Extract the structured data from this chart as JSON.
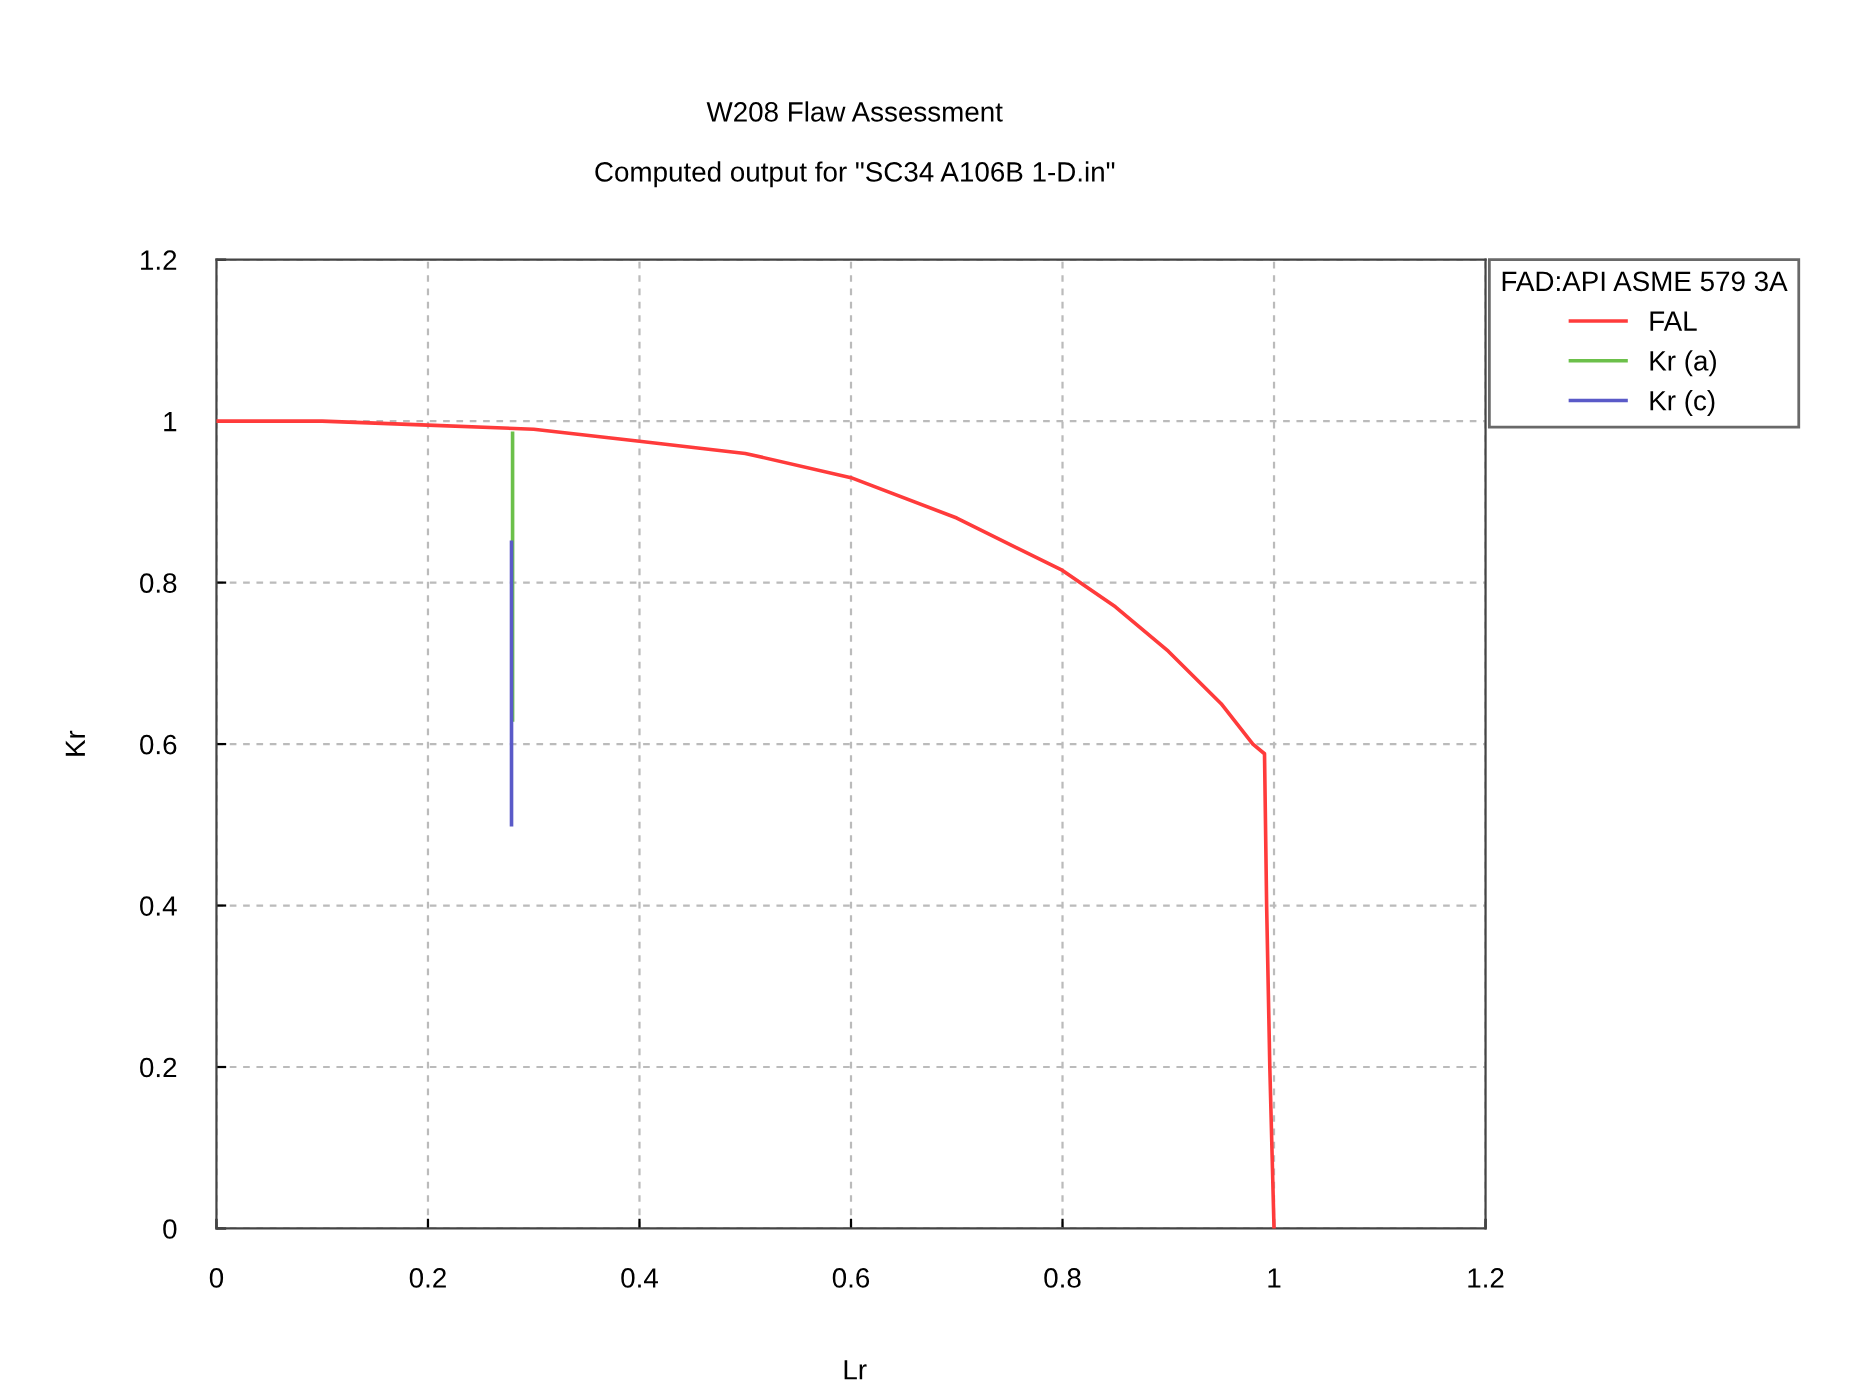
{
  "chart_data": {
    "type": "line",
    "title": "W208 Flaw Assessment",
    "subtitle": "Computed output for \"SC34 A106B 1-D.in\"",
    "xlabel": "Lr",
    "ylabel": "Kr",
    "legend_title": "FAD:API ASME 579 3A",
    "series": [
      {
        "name": "FAL",
        "color": "#ff3b3b",
        "x": [
          0,
          0.1,
          0.2,
          0.3,
          0.4,
          0.5,
          0.6,
          0.7,
          0.8,
          0.85,
          0.9,
          0.95,
          0.98,
          0.991,
          0.993,
          0.996,
          1.0
        ],
        "values": [
          1.0,
          1.0,
          0.995,
          0.99,
          0.975,
          0.96,
          0.93,
          0.88,
          0.815,
          0.77,
          0.715,
          0.65,
          0.6,
          0.588,
          0.4,
          0.2,
          0
        ]
      },
      {
        "name": "Kr (a)",
        "color": "#6cc04a",
        "x": [
          0.28,
          0.28
        ],
        "values": [
          0.985,
          0.63
        ]
      },
      {
        "name": "Kr (c)",
        "color": "#5a5ac8",
        "x": [
          0.279,
          0.279
        ],
        "values": [
          0.85,
          0.5
        ]
      }
    ],
    "xlim": [
      0,
      1.2
    ],
    "ylim": [
      0,
      1.2
    ],
    "xticks": [
      0,
      0.2,
      0.4,
      0.6,
      0.8,
      1,
      1.2
    ],
    "yticks": [
      0,
      0.2,
      0.4,
      0.6,
      0.8,
      1,
      1.2
    ],
    "grid": true,
    "legend": "top right",
    "line_style": "solid",
    "marker": "none"
  }
}
